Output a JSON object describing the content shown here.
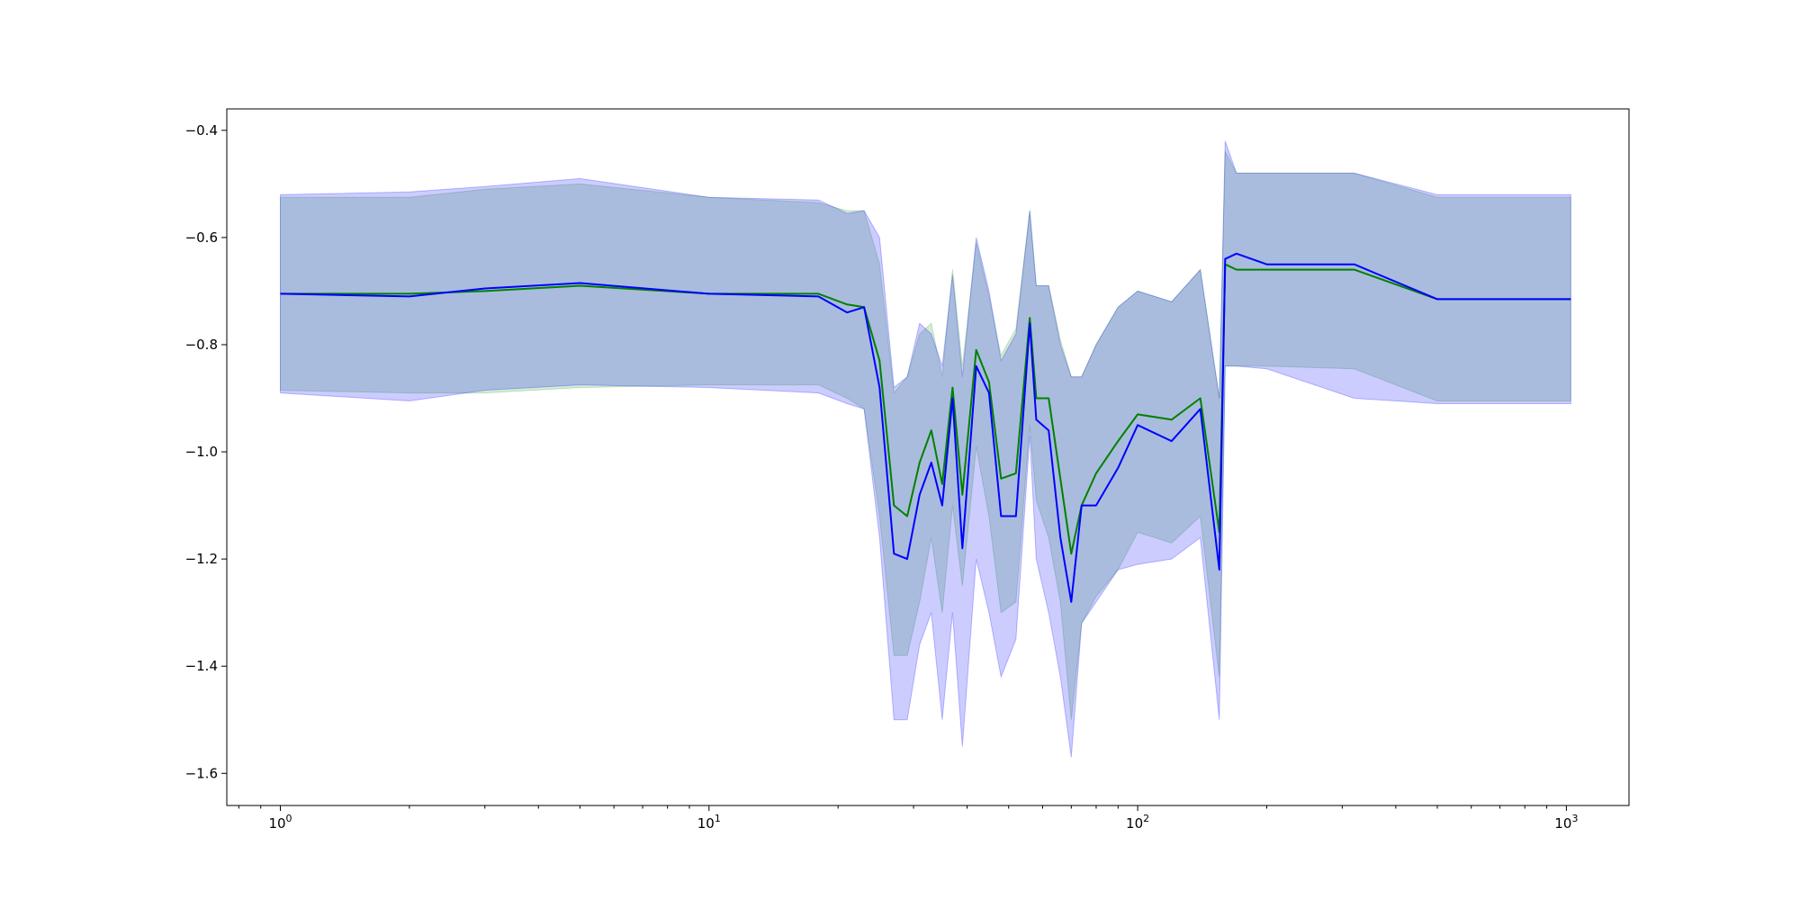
{
  "chart_data": {
    "type": "line",
    "title": "",
    "xlabel": "",
    "ylabel": "",
    "x_scale": "log",
    "xlim": [
      0.75,
      1400
    ],
    "ylim": [
      -1.66,
      -0.36
    ],
    "grid": false,
    "legend": "none",
    "x_ticks": [
      {
        "value": 1,
        "base": "10",
        "exp": "0"
      },
      {
        "value": 10,
        "base": "10",
        "exp": "1"
      },
      {
        "value": 100,
        "base": "10",
        "exp": "2"
      },
      {
        "value": 1000,
        "base": "10",
        "exp": "3"
      }
    ],
    "y_ticks": [
      {
        "value": -1.6,
        "label": "−1.6"
      },
      {
        "value": -1.4,
        "label": "−1.4"
      },
      {
        "value": -1.2,
        "label": "−1.2"
      },
      {
        "value": -1.0,
        "label": "−1.0"
      },
      {
        "value": -0.8,
        "label": "−0.8"
      },
      {
        "value": -0.6,
        "label": "−0.6"
      },
      {
        "value": -0.4,
        "label": "−0.4"
      }
    ],
    "x": [
      1,
      2,
      3,
      5,
      10,
      18,
      21,
      23,
      25,
      27,
      29,
      31,
      33,
      35,
      37,
      39,
      42,
      45,
      48,
      52,
      56,
      58,
      62,
      66,
      70,
      74,
      80,
      90,
      100,
      120,
      140,
      155,
      160,
      170,
      200,
      320,
      500,
      1024
    ],
    "series": [
      {
        "color": "#008000",
        "band_color": "#2ca02c",
        "values": [
          -0.705,
          -0.705,
          -0.7,
          -0.69,
          -0.705,
          -0.705,
          -0.725,
          -0.73,
          -0.83,
          -1.1,
          -1.12,
          -1.02,
          -0.96,
          -1.06,
          -0.88,
          -1.08,
          -0.81,
          -0.87,
          -1.05,
          -1.04,
          -0.75,
          -0.9,
          -0.9,
          -1.05,
          -1.19,
          -1.1,
          -1.04,
          -0.98,
          -0.93,
          -0.94,
          -0.9,
          -1.15,
          -0.65,
          -0.66,
          -0.66,
          -0.66,
          -0.715,
          -0.715
        ],
        "lower": [
          -0.885,
          -0.89,
          -0.89,
          -0.88,
          -0.875,
          -0.875,
          -0.9,
          -0.92,
          -1.12,
          -1.38,
          -1.38,
          -1.28,
          -1.16,
          -1.3,
          -1.1,
          -1.25,
          -0.99,
          -1.12,
          -1.3,
          -1.28,
          -0.95,
          -1.09,
          -1.16,
          -1.28,
          -1.5,
          -1.32,
          -1.27,
          -1.22,
          -1.15,
          -1.17,
          -1.12,
          -1.42,
          -0.84,
          -0.84,
          -0.84,
          -0.845,
          -0.905,
          -0.905
        ],
        "upper": [
          -0.525,
          -0.525,
          -0.51,
          -0.5,
          -0.525,
          -0.535,
          -0.55,
          -0.55,
          -0.65,
          -0.89,
          -0.86,
          -0.78,
          -0.76,
          -0.86,
          -0.66,
          -0.84,
          -0.61,
          -0.71,
          -0.82,
          -0.77,
          -0.55,
          -0.69,
          -0.69,
          -0.79,
          -0.86,
          -0.86,
          -0.8,
          -0.73,
          -0.7,
          -0.72,
          -0.66,
          -0.9,
          -0.44,
          -0.48,
          -0.48,
          -0.48,
          -0.525,
          -0.525
        ]
      },
      {
        "color": "#0000ff",
        "band_color": "#0000ff",
        "values": [
          -0.705,
          -0.71,
          -0.695,
          -0.685,
          -0.705,
          -0.71,
          -0.74,
          -0.73,
          -0.88,
          -1.19,
          -1.2,
          -1.08,
          -1.02,
          -1.1,
          -0.9,
          -1.18,
          -0.84,
          -0.89,
          -1.12,
          -1.12,
          -0.76,
          -0.94,
          -0.96,
          -1.16,
          -1.28,
          -1.1,
          -1.1,
          -1.03,
          -0.95,
          -0.98,
          -0.92,
          -1.22,
          -0.64,
          -0.63,
          -0.65,
          -0.65,
          -0.715,
          -0.715
        ],
        "lower": [
          -0.89,
          -0.905,
          -0.885,
          -0.875,
          -0.88,
          -0.89,
          -0.91,
          -0.92,
          -1.16,
          -1.5,
          -1.5,
          -1.36,
          -1.3,
          -1.5,
          -1.3,
          -1.55,
          -1.2,
          -1.3,
          -1.42,
          -1.35,
          -0.97,
          -1.2,
          -1.3,
          -1.42,
          -1.57,
          -1.32,
          -1.28,
          -1.22,
          -1.21,
          -1.2,
          -1.16,
          -1.5,
          -0.84,
          -0.84,
          -0.845,
          -0.9,
          -0.91,
          -0.91
        ],
        "upper": [
          -0.52,
          -0.515,
          -0.505,
          -0.49,
          -0.525,
          -0.53,
          -0.555,
          -0.55,
          -0.6,
          -0.88,
          -0.86,
          -0.76,
          -0.78,
          -0.84,
          -0.67,
          -0.86,
          -0.6,
          -0.7,
          -0.83,
          -0.78,
          -0.55,
          -0.69,
          -0.69,
          -0.8,
          -0.86,
          -0.86,
          -0.8,
          -0.73,
          -0.7,
          -0.72,
          -0.66,
          -0.9,
          -0.42,
          -0.48,
          -0.48,
          -0.48,
          -0.52,
          -0.52
        ]
      }
    ]
  }
}
